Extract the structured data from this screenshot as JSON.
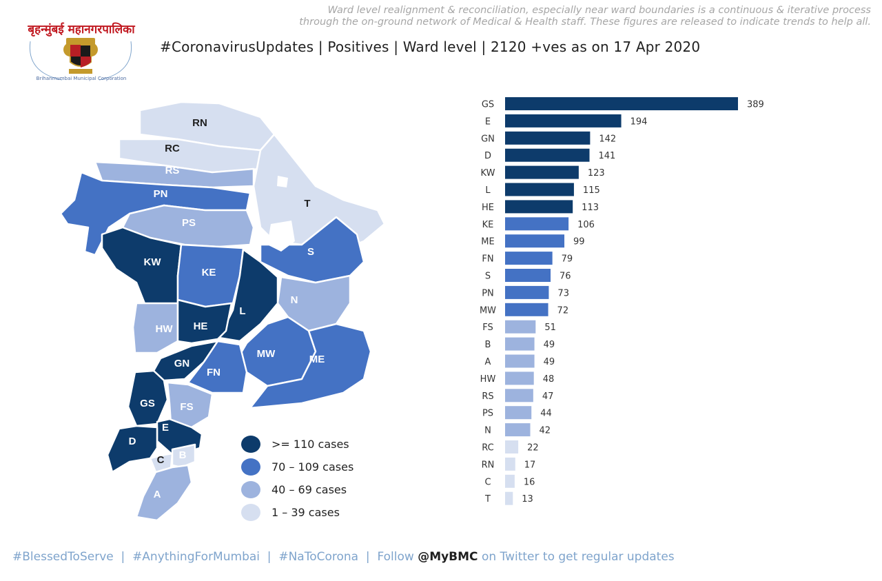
{
  "header": {
    "note_line1": "Ward level realignment & reconciliation, especially near ward boundaries is a continuous & iterative process",
    "note_line2": "through the on-ground network of Medical & Health staff. These figures are released to indicate trends to help all.",
    "title": "#CoronavirusUpdates  | Positives | Ward level | 2120 +ves as on 17 Apr 2020"
  },
  "logo": {
    "top_text": "बृहन्मुंबई महानगरपालिका",
    "ring_text": "Brihanmumbai Municipal Corporation"
  },
  "colors": {
    "tier1": "#0d3b6b",
    "tier2": "#4472c4",
    "tier3": "#9db3de",
    "tier4": "#d6dff0"
  },
  "legend": [
    {
      "label": "&gt;= 110 cases",
      "text": ">= 110 cases",
      "tier": "tier1"
    },
    {
      "label": "70 – 109 cases",
      "text": "70 – 109 cases",
      "tier": "tier2"
    },
    {
      "label": "40 – 69 cases",
      "text": "40 – 69 cases",
      "tier": "tier3"
    },
    {
      "label": "1 – 39 cases",
      "text": "1 – 39 cases",
      "tier": "tier4"
    }
  ],
  "map_labels": {
    "RN": "RN",
    "RC": "RC",
    "RS": "RS",
    "PN": "PN",
    "PS": "PS",
    "T": "T",
    "KW": "KW",
    "KE": "KE",
    "S": "S",
    "N": "N",
    "HW": "HW",
    "HE": "HE",
    "L": "L",
    "GN": "GN",
    "FN": "FN",
    "MW": "MW",
    "ME": "ME",
    "GS": "GS",
    "FS": "FS",
    "D": "D",
    "E": "E",
    "C": "C",
    "B": "B",
    "A": "A"
  },
  "chart_data": {
    "type": "bar",
    "orientation": "horizontal",
    "categories": [
      "GS",
      "E",
      "GN",
      "D",
      "KW",
      "L",
      "HE",
      "KE",
      "ME",
      "FN",
      "S",
      "PN",
      "MW",
      "FS",
      "B",
      "A",
      "HW",
      "RS",
      "PS",
      "N",
      "RC",
      "RN",
      "C",
      "T"
    ],
    "values": [
      389,
      194,
      142,
      141,
      123,
      115,
      113,
      106,
      99,
      79,
      76,
      73,
      72,
      51,
      49,
      49,
      48,
      47,
      44,
      42,
      22,
      17,
      16,
      13
    ],
    "title": "",
    "xlabel": "",
    "ylabel": "",
    "grid": false,
    "color_rule": [
      {
        "min": 110,
        "tier": "tier1"
      },
      {
        "min": 70,
        "tier": "tier2"
      },
      {
        "min": 40,
        "tier": "tier3"
      },
      {
        "min": 1,
        "tier": "tier4"
      }
    ]
  },
  "footer": {
    "tag1": "#BlessedToServe",
    "sep1": "  |  ",
    "tag2": "#AnythingForMumbai",
    "sep2": "  |  ",
    "tag3": "#NaToCorona",
    "sep3": "  |  ",
    "follow": "Follow ",
    "handle": "@MyBMC",
    "tail": " on Twitter to get regular updates"
  }
}
